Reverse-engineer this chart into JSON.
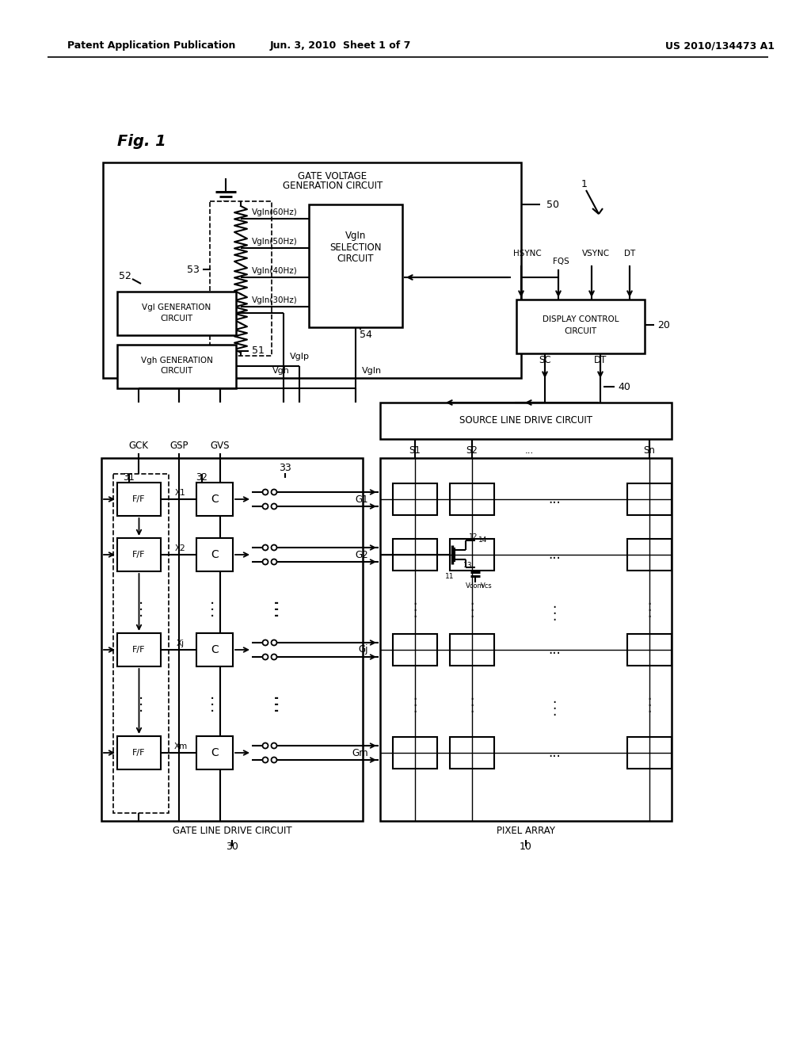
{
  "header_left": "Patent Application Publication",
  "header_center": "Jun. 3, 2010  Sheet 1 of 7",
  "header_right": "US 2010/134473 A1",
  "fig_label": "Fig. 1",
  "bg": "#ffffff",
  "lc": "#000000"
}
